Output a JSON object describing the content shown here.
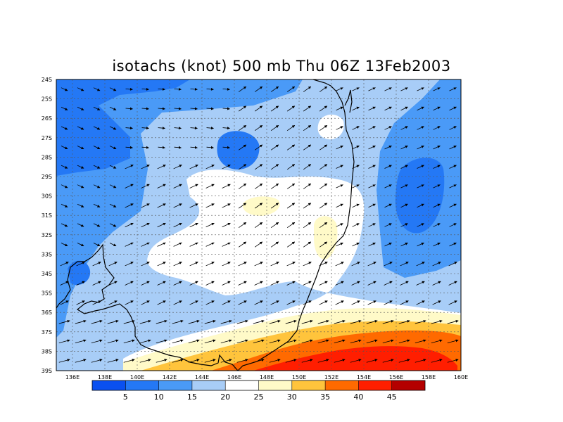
{
  "title": "isotachs (knot) 500 mb Thu 06Z 13Feb2003",
  "map": {
    "lat_labels": [
      "24S",
      "25S",
      "26S",
      "27S",
      "28S",
      "29S",
      "30S",
      "31S",
      "32S",
      "33S",
      "34S",
      "35S",
      "36S",
      "37S",
      "38S",
      "39S"
    ],
    "lon_labels": [
      "136E",
      "138E",
      "140E",
      "142E",
      "144E",
      "146E",
      "148E",
      "150E",
      "152E",
      "154E",
      "156E",
      "158E",
      "160E"
    ],
    "lat_range": [
      -39,
      -24
    ],
    "lon_range": [
      135,
      160
    ]
  },
  "colorbar": {
    "labels": [
      "5",
      "10",
      "15",
      "20",
      "25",
      "30",
      "35",
      "40",
      "45"
    ],
    "colors": [
      "#0a50f0",
      "#2478f5",
      "#4a9af7",
      "#a8cdf7",
      "#ffffff",
      "#fffac8",
      "#ffc43c",
      "#ff6a00",
      "#ff1e00",
      "#b40000"
    ]
  },
  "fill_colors": {
    "c10": "#2478f5",
    "c15": "#4a9af7",
    "c20": "#a8cdf7",
    "c25": "#ffffff",
    "c30": "#fffac8",
    "c35": "#ffc43c",
    "c40": "#ff6a00",
    "c45": "#ff1e00"
  }
}
